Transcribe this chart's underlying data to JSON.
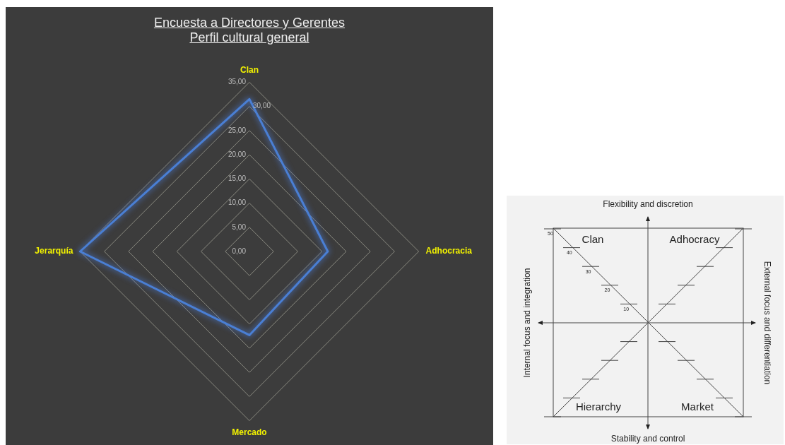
{
  "chart_data": [
    {
      "type": "radar",
      "title": "Encuesta a Directores y Gerentes",
      "subtitle": "Perfil cultural general",
      "categories": [
        "Clan",
        "Adhocracia",
        "Mercado",
        "Jerarquía"
      ],
      "series": [
        {
          "color": "#4a7fd4",
          "values": [
            31.5,
            16.2,
            17.3,
            35
          ]
        }
      ],
      "ylim": [
        0,
        35
      ],
      "yticks": [
        {
          "value": 0,
          "label": "0,00"
        },
        {
          "value": 5,
          "label": "5,00"
        },
        {
          "value": 10,
          "label": "10,00"
        },
        {
          "value": 15,
          "label": "15,00"
        },
        {
          "value": 20,
          "label": "20,00"
        },
        {
          "value": 25,
          "label": "25,00"
        },
        {
          "value": 30,
          "label": "30,00"
        },
        {
          "value": 35,
          "label": "35,00"
        }
      ],
      "grid": true,
      "legend": false,
      "marker": "none"
    },
    {
      "type": "other",
      "annotations": [
        "Flexibility and discretion",
        "Stability and control",
        "Internal focus and integration",
        "External focus and differentiation",
        "Clan",
        "Adhocracy",
        "Hierarchy",
        "Market",
        "10",
        "20",
        "30",
        "40",
        "50"
      ]
    }
  ]
}
